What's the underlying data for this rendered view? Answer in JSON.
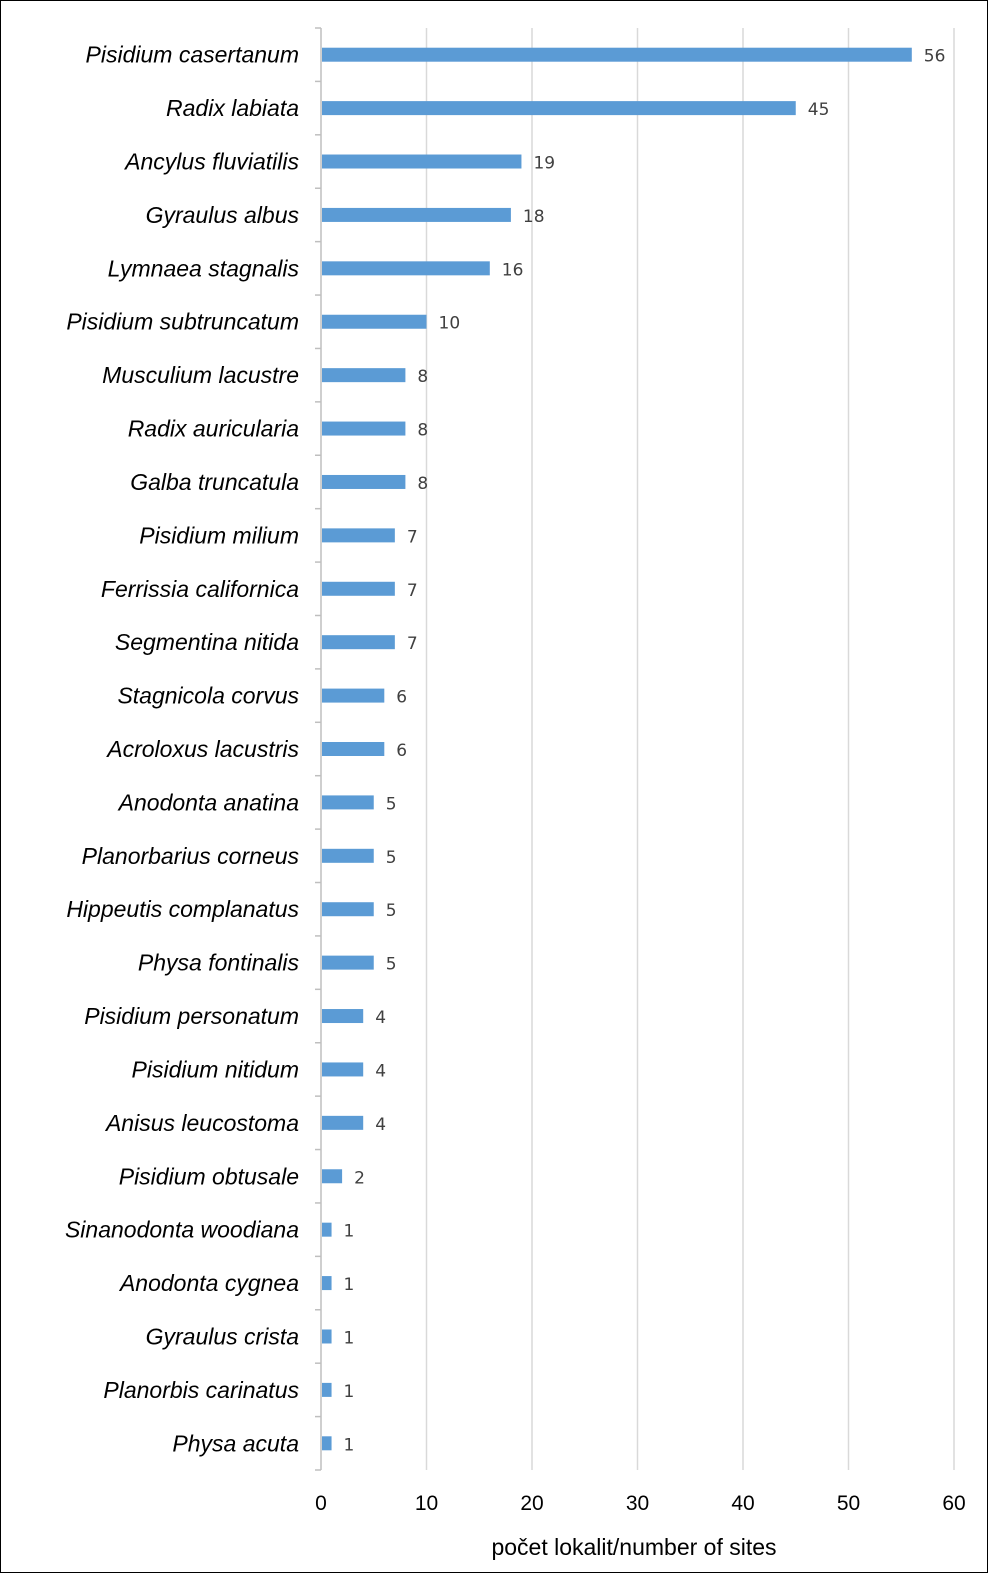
{
  "chart_data": {
    "type": "bar",
    "orientation": "horizontal",
    "title": "",
    "xlabel": "počet lokalit/number of sites",
    "ylabel": "",
    "xlim": [
      0,
      60
    ],
    "xticks": [
      0,
      10,
      20,
      30,
      40,
      50,
      60
    ],
    "grid": "vertical",
    "legend": "none",
    "bar_color": "#5B9BD5",
    "data_labels": true,
    "categories": [
      "Pisidium casertanum",
      "Radix labiata",
      "Ancylus fluviatilis",
      "Gyraulus albus",
      "Lymnaea stagnalis",
      "Pisidium subtruncatum",
      "Musculium lacustre",
      "Radix auricularia",
      "Galba truncatula",
      "Pisidium milium",
      "Ferrissia californica",
      "Segmentina nitida",
      "Stagnicola corvus",
      "Acroloxus lacustris",
      "Anodonta anatina",
      "Planorbarius corneus",
      "Hippeutis complanatus",
      "Physa fontinalis",
      "Pisidium personatum",
      "Pisidium nitidum",
      "Anisus leucostoma",
      "Pisidium obtusale",
      "Sinanodonta woodiana",
      "Anodonta cygnea",
      "Gyraulus crista",
      "Planorbis carinatus",
      "Physa acuta"
    ],
    "values": [
      56,
      45,
      19,
      18,
      16,
      10,
      8,
      8,
      8,
      7,
      7,
      7,
      6,
      6,
      5,
      5,
      5,
      5,
      4,
      4,
      4,
      2,
      1,
      1,
      1,
      1,
      1
    ]
  }
}
